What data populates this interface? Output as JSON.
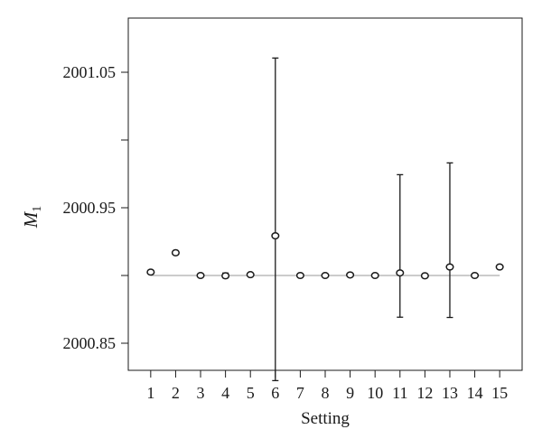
{
  "chart_data": {
    "type": "scatter",
    "title": "",
    "xlabel": "Setting",
    "ylabel": {
      "main": "M",
      "subscript": "1"
    },
    "x_ticks": [
      1,
      2,
      3,
      4,
      5,
      6,
      7,
      8,
      9,
      10,
      11,
      12,
      13,
      14,
      15
    ],
    "x_tick_labels": [
      "1",
      "2",
      "3",
      "4",
      "5",
      "6",
      "7",
      "8",
      "9",
      "10",
      "11",
      "12",
      "13",
      "14",
      "15"
    ],
    "xlim": [
      0.1,
      15.9
    ],
    "y_ticks": [
      2000.85,
      2000.9,
      2000.95,
      2001.0,
      2001.05
    ],
    "y_tick_labels": [
      "2000.85",
      "",
      "2000.95",
      "",
      "2001.05"
    ],
    "ylim": [
      2000.83,
      2001.09
    ],
    "reference_line": 2000.9,
    "grid": false,
    "legend": "none",
    "points": [
      {
        "x": 1,
        "y": 2000.9025,
        "err_low": 2000.9025,
        "err_high": 2000.9025
      },
      {
        "x": 2,
        "y": 2000.9168,
        "err_low": 2000.9168,
        "err_high": 2000.9168
      },
      {
        "x": 3,
        "y": 2000.9,
        "err_low": 2000.9,
        "err_high": 2000.9
      },
      {
        "x": 4,
        "y": 2000.8998,
        "err_low": 2000.8983,
        "err_high": 2000.9018
      },
      {
        "x": 5,
        "y": 2000.9006,
        "err_low": 2000.9006,
        "err_high": 2000.9006
      },
      {
        "x": 6,
        "y": 2000.9293,
        "err_low": 2000.8224,
        "err_high": 2001.0605
      },
      {
        "x": 7,
        "y": 2000.9,
        "err_low": 2000.9,
        "err_high": 2000.9
      },
      {
        "x": 8,
        "y": 2000.9,
        "err_low": 2000.9,
        "err_high": 2000.9
      },
      {
        "x": 9,
        "y": 2000.9004,
        "err_low": 2000.9004,
        "err_high": 2000.9004
      },
      {
        "x": 10,
        "y": 2000.9,
        "err_low": 2000.9,
        "err_high": 2000.9
      },
      {
        "x": 11,
        "y": 2000.9019,
        "err_low": 2000.8692,
        "err_high": 2000.9744
      },
      {
        "x": 12,
        "y": 2000.8998,
        "err_low": 2000.8998,
        "err_high": 2000.8998
      },
      {
        "x": 13,
        "y": 2000.9063,
        "err_low": 2000.869,
        "err_high": 2000.9831
      },
      {
        "x": 14,
        "y": 2000.9,
        "err_low": 2000.9,
        "err_high": 2000.9
      },
      {
        "x": 15,
        "y": 2000.9063,
        "err_low": 2000.9063,
        "err_high": 2000.9063
      }
    ],
    "colors": {
      "axis": "#1a1a1a",
      "points": "#1a1a1a",
      "reference_line": "#9a9a9a"
    }
  }
}
